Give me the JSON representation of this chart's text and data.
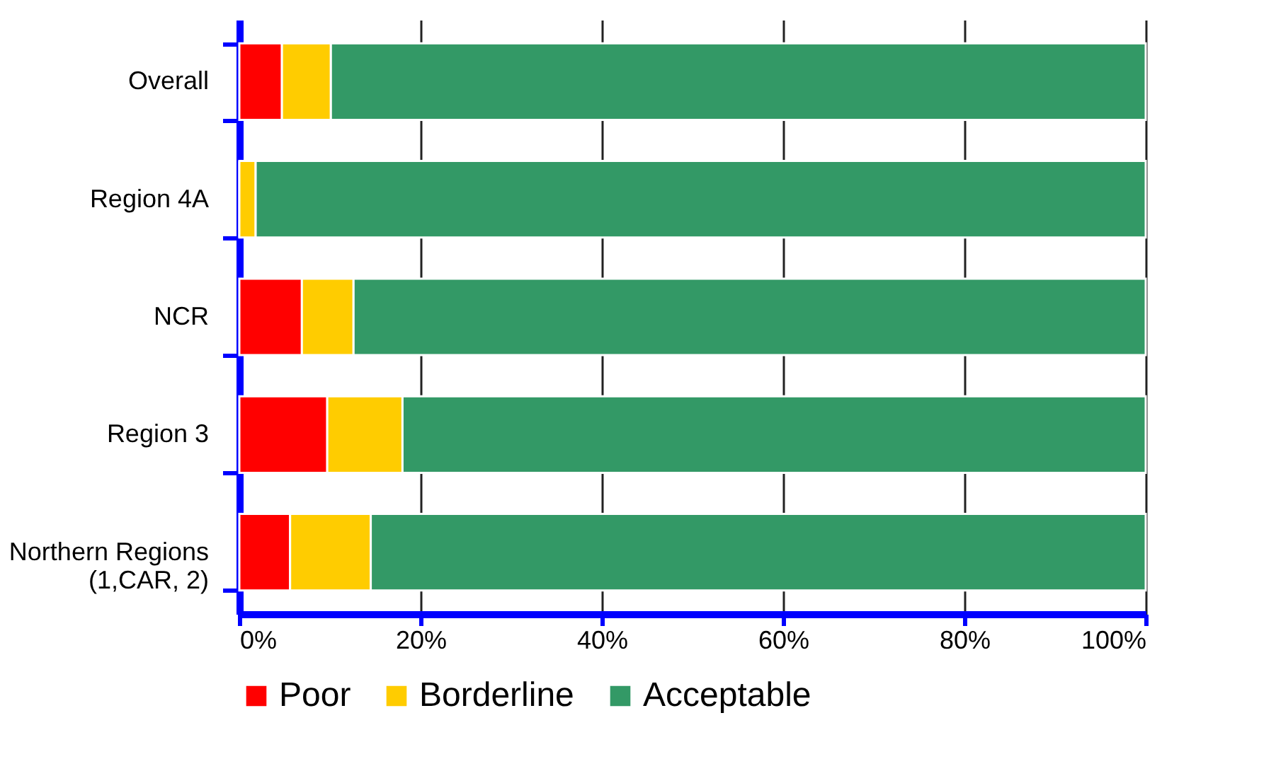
{
  "chart_data": {
    "type": "bar",
    "orientation": "horizontal",
    "stacked": true,
    "categories": [
      "Overall",
      "Region 4A",
      "NCR",
      "Region 3",
      "Northern Regions\n(1,CAR, 2)"
    ],
    "series": [
      {
        "name": "Poor",
        "color": "#ff0000",
        "values": [
          4.7,
          0,
          6.9,
          9.7,
          5.6
        ]
      },
      {
        "name": "Borderline",
        "color": "#ffcc00",
        "values": [
          5.4,
          1.8,
          5.7,
          8.3,
          8.9
        ]
      },
      {
        "name": "Acceptable",
        "color": "#339966",
        "values": [
          89.9,
          98.2,
          87.4,
          82.0,
          85.5
        ]
      }
    ],
    "xlim": [
      0,
      100
    ],
    "xticks": [
      {
        "value": 0,
        "label": "0%"
      },
      {
        "value": 20,
        "label": "20%"
      },
      {
        "value": 40,
        "label": "40%"
      },
      {
        "value": 60,
        "label": "60%"
      },
      {
        "value": 80,
        "label": "80%"
      },
      {
        "value": 100,
        "label": "100%"
      }
    ],
    "grid": "x",
    "legend": "bottom"
  }
}
